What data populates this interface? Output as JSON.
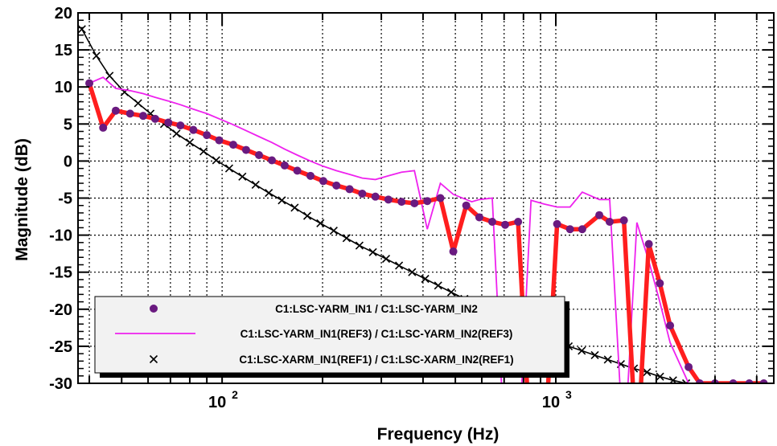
{
  "chart_data": {
    "type": "line",
    "title": "",
    "xlabel": "Frequency (Hz)",
    "ylabel": "Magnitude (dB)",
    "xscale": "log",
    "xlim": [
      37,
      4500
    ],
    "ylim": [
      -30,
      20
    ],
    "grid": true,
    "legend_position": "bottom-left",
    "x_tick_labels": [
      {
        "value": 100,
        "base": "10",
        "exp": "2"
      },
      {
        "value": 1000,
        "base": "10",
        "exp": "3"
      }
    ],
    "y_ticks": [
      20,
      15,
      10,
      5,
      0,
      -5,
      -10,
      -15,
      -20,
      -25,
      -30
    ],
    "colors": {
      "series_meas_line": "#ff1e1e",
      "series_meas_marker": "#6a1a80",
      "series_ref3": "#ee22ee",
      "series_ref1": "#000000",
      "grid": "#000000",
      "legend_bg": "#f2f2f2"
    },
    "series": [
      {
        "name": "C1:LSC-YARM_IN1 / C1:LSC-YARM_IN2",
        "marker": "circle",
        "x": [
          40,
          44,
          48,
          53,
          58,
          63,
          69,
          75,
          82,
          90,
          98,
          108,
          118,
          129,
          141,
          154,
          168,
          184,
          201,
          220,
          241,
          263,
          288,
          315,
          345,
          377,
          412,
          451,
          493,
          539,
          590,
          645,
          705,
          771,
          843,
          922,
          1009,
          1103,
          1200,
          1350,
          1450,
          1600,
          1750,
          1900,
          2050,
          2200,
          2500,
          2700,
          3000,
          3400,
          3800,
          4200
        ],
        "y": [
          10.5,
          4.5,
          6.8,
          6.4,
          6.1,
          5.7,
          5.2,
          4.8,
          4.2,
          3.5,
          2.8,
          2.2,
          1.5,
          0.8,
          0.1,
          -0.6,
          -1.3,
          -2.0,
          -2.7,
          -3.3,
          -3.8,
          -4.4,
          -4.8,
          -5.2,
          -5.5,
          -5.7,
          -5.4,
          -5.0,
          -12.2,
          -6.0,
          -7.6,
          -8.2,
          -8.6,
          -8.2,
          -40,
          -40,
          -8.5,
          -9.2,
          -9.2,
          -7.3,
          -8.2,
          -8.0,
          -40,
          -11.2,
          -16.5,
          -22.2,
          -27.8,
          -30,
          -30,
          -30,
          -30,
          -30
        ]
      },
      {
        "name": "C1:LSC-YARM_IN1(REF3) / C1:LSC-YARM_IN2(REF3)",
        "marker": "none",
        "x": [
          40,
          44,
          48,
          53,
          58,
          63,
          69,
          75,
          82,
          90,
          98,
          108,
          118,
          129,
          141,
          154,
          168,
          184,
          201,
          220,
          241,
          263,
          288,
          315,
          345,
          377,
          412,
          451,
          493,
          539,
          560,
          590,
          645,
          705,
          771,
          843,
          922,
          1009,
          1103,
          1200,
          1350,
          1450,
          1600,
          1750,
          1900,
          2050,
          2200,
          2500,
          2700,
          3000,
          3400,
          3800,
          4200
        ],
        "y": [
          10.5,
          11.3,
          9.8,
          9.5,
          9.1,
          8.6,
          8.1,
          7.6,
          7.0,
          6.4,
          5.7,
          4.9,
          4.1,
          3.3,
          2.5,
          1.6,
          0.8,
          0,
          -0.7,
          -1.3,
          -1.8,
          -2.3,
          -2.5,
          -2.0,
          -1.5,
          -1.3,
          -9.2,
          -3.0,
          -4.5,
          -5.2,
          -5.5,
          -5.2,
          -5.0,
          -40,
          -40,
          -5.3,
          -5.8,
          -6.2,
          -6.2,
          -4.2,
          -5.2,
          -5.2,
          -40,
          -8.3,
          -13.5,
          -19.0,
          -24.5,
          -30,
          -30,
          -30,
          -30,
          -30,
          -30
        ]
      },
      {
        "name": "C1:LSC-XARM_IN1(REF1) / C1:LSC-XARM_IN2(REF1)",
        "marker": "x",
        "x": [
          38,
          42,
          46,
          51,
          56,
          61,
          67,
          73,
          80,
          88,
          96,
          105,
          115,
          126,
          138,
          151,
          165,
          180,
          197,
          216,
          236,
          258,
          283,
          310,
          339,
          371,
          406,
          444,
          486,
          532,
          582,
          637,
          697,
          762,
          834,
          913,
          999,
          1093,
          1196,
          1309,
          1432,
          1567,
          1715,
          1876,
          2053,
          2246,
          2458,
          2689,
          2943,
          3220,
          3523,
          3855,
          4218
        ],
        "y": [
          17.8,
          14.2,
          11.5,
          9.3,
          7.8,
          6.4,
          5.0,
          3.7,
          2.5,
          1.3,
          0.1,
          -1.0,
          -2.1,
          -3.2,
          -4.3,
          -5.3,
          -6.3,
          -7.4,
          -8.4,
          -9.4,
          -10.4,
          -11.4,
          -12.3,
          -13.2,
          -14.1,
          -15.0,
          -15.9,
          -16.8,
          -17.7,
          -18.6,
          -19.4,
          -20.3,
          -21.1,
          -22.0,
          -22.8,
          -23.6,
          -24.3,
          -25.0,
          -25.6,
          -26.2,
          -26.8,
          -27.4,
          -28.0,
          -28.5,
          -29.1,
          -29.6,
          -30.0,
          -30.5,
          -31.0,
          -31.5,
          -32.0,
          -32.5,
          -33.0
        ]
      }
    ]
  }
}
